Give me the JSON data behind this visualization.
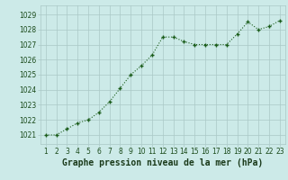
{
  "x": [
    1,
    2,
    3,
    4,
    5,
    6,
    7,
    8,
    9,
    10,
    11,
    12,
    13,
    14,
    15,
    16,
    17,
    18,
    19,
    20,
    21,
    22,
    23
  ],
  "y": [
    1021.0,
    1021.0,
    1021.4,
    1021.8,
    1022.0,
    1022.5,
    1023.2,
    1024.1,
    1025.0,
    1025.6,
    1026.3,
    1027.5,
    1027.5,
    1027.2,
    1027.0,
    1027.0,
    1027.0,
    1027.0,
    1027.7,
    1028.5,
    1028.0,
    1028.2,
    1028.6
  ],
  "line_color": "#1a5c1a",
  "marker": "+",
  "marker_size": 3,
  "marker_linewidth": 1.0,
  "line_width": 0.8,
  "background_color": "#cceae8",
  "grid_color": "#aac8c6",
  "xlabel": "Graphe pression niveau de la mer (hPa)",
  "xlabel_fontsize": 7,
  "xlabel_color": "#1a3a1a",
  "yticks": [
    1021,
    1022,
    1023,
    1024,
    1025,
    1026,
    1027,
    1028,
    1029
  ],
  "ylim": [
    1020.4,
    1029.6
  ],
  "xlim": [
    0.5,
    23.5
  ],
  "xticks": [
    1,
    2,
    3,
    4,
    5,
    6,
    7,
    8,
    9,
    10,
    11,
    12,
    13,
    14,
    15,
    16,
    17,
    18,
    19,
    20,
    21,
    22,
    23
  ],
  "tick_fontsize": 5.5,
  "tick_color": "#1a4a1a"
}
